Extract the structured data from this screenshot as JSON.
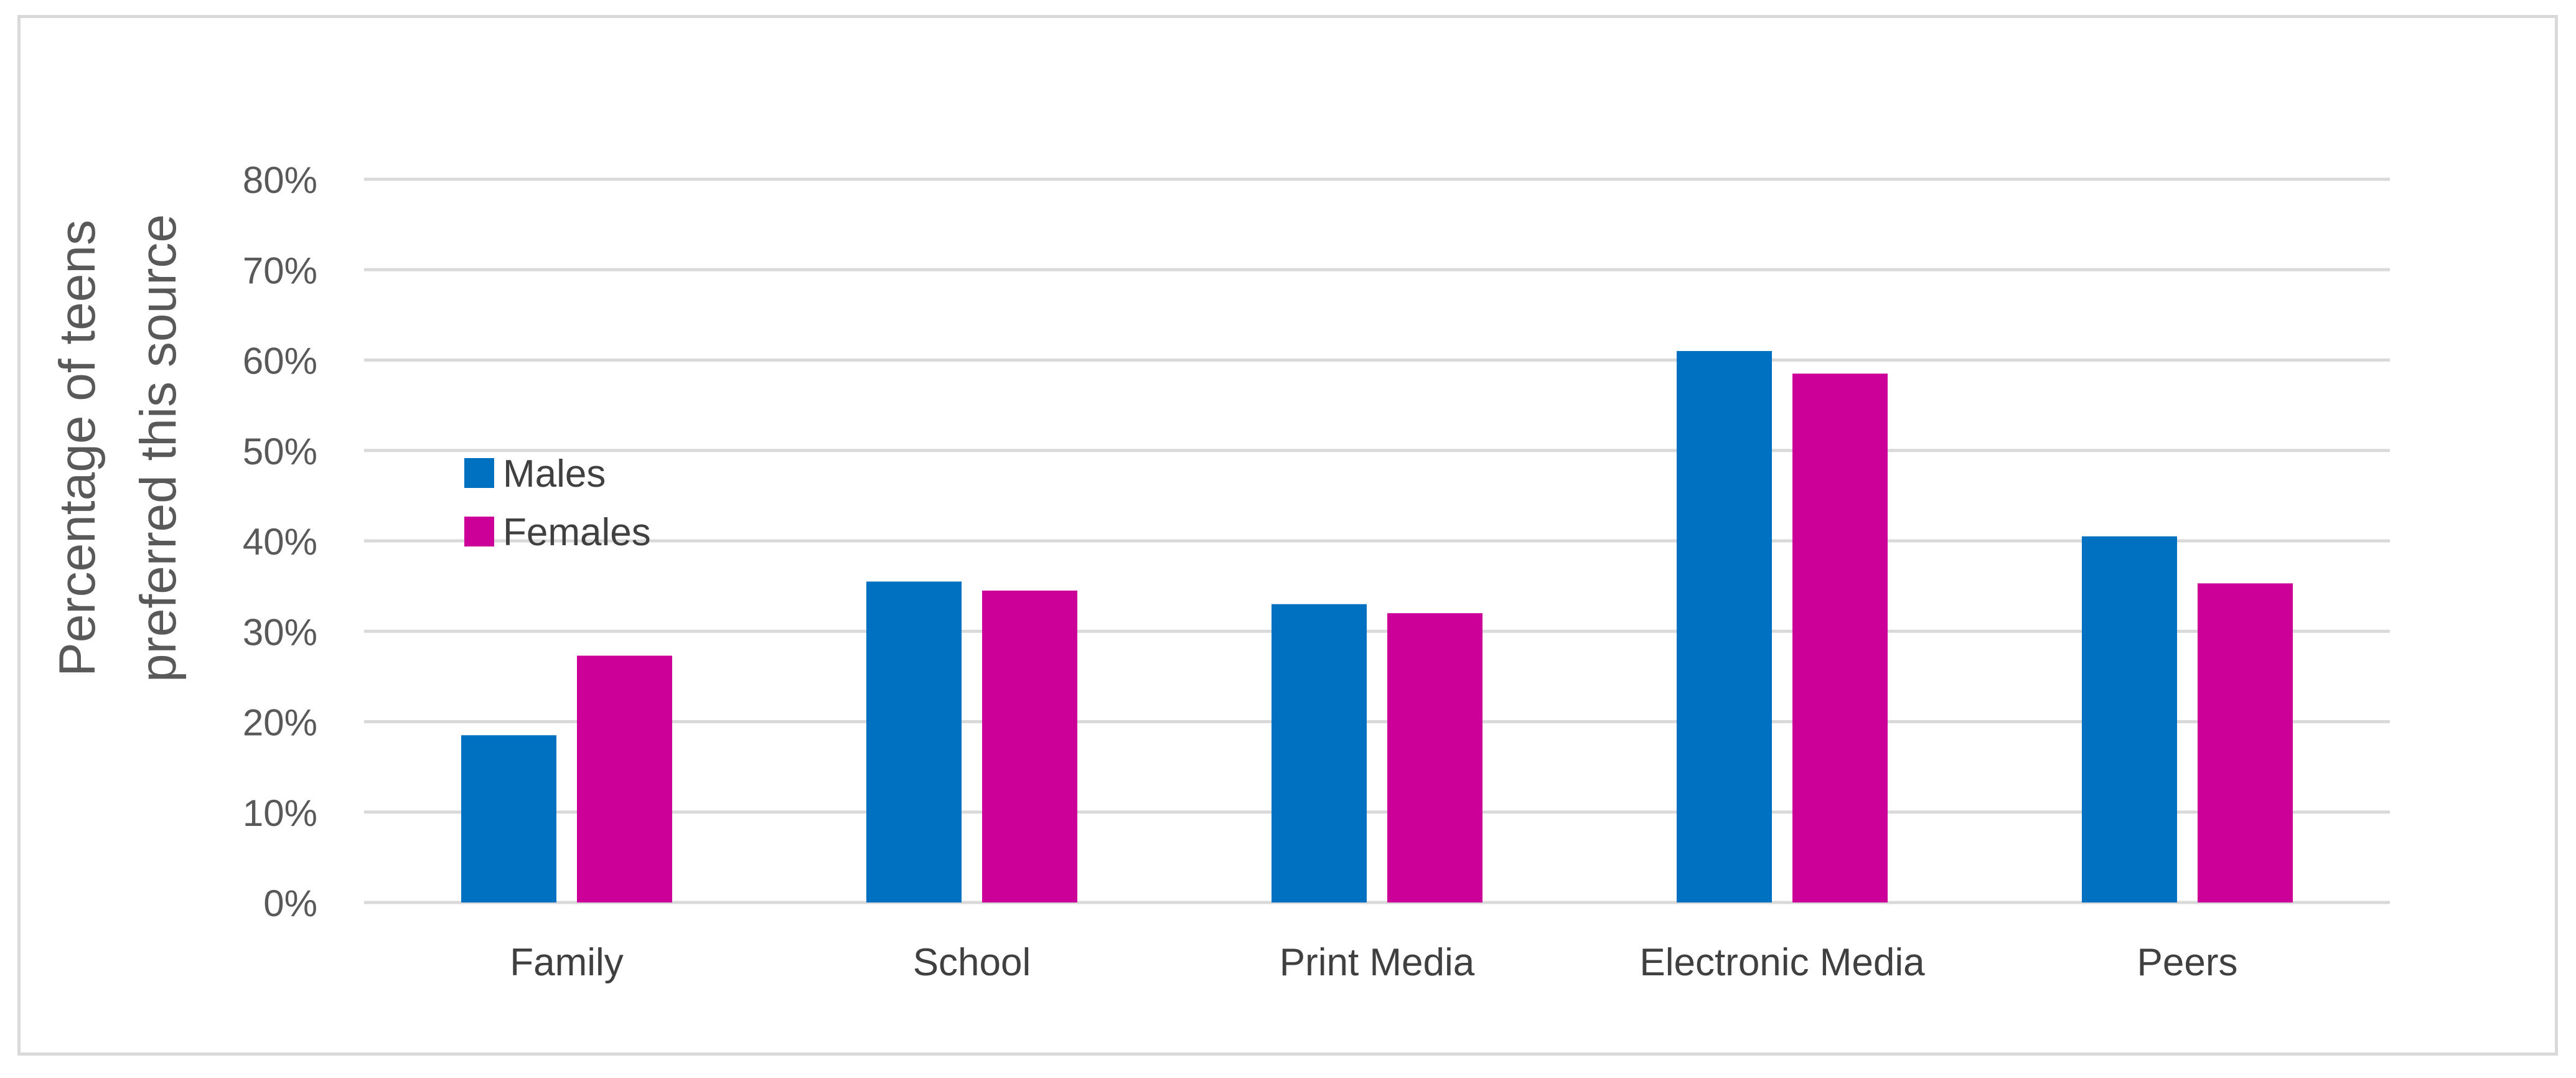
{
  "chart_data": {
    "type": "bar",
    "title": "",
    "xlabel": "",
    "ylabel": [
      "Percentage of teens",
      "preferred  this source"
    ],
    "categories": [
      "Family",
      "School",
      "Print Media",
      "Electronic Media",
      "Peers"
    ],
    "series": [
      {
        "name": "Males",
        "color": "#0070c0",
        "values": [
          0.185,
          0.355,
          0.33,
          0.61,
          0.405
        ]
      },
      {
        "name": "Females",
        "color": "#cc0099",
        "values": [
          0.273,
          0.345,
          0.32,
          0.585,
          0.353
        ]
      }
    ],
    "ylim": [
      0,
      0.8
    ],
    "yticks": [
      0,
      0.1,
      0.2,
      0.3,
      0.4,
      0.5,
      0.6,
      0.7,
      0.8
    ],
    "ytick_labels": [
      "0%",
      "10%",
      "20%",
      "30%",
      "40%",
      "50%",
      "60%",
      "70%",
      "80%"
    ],
    "grid": true,
    "legend_position": "left-middle"
  }
}
